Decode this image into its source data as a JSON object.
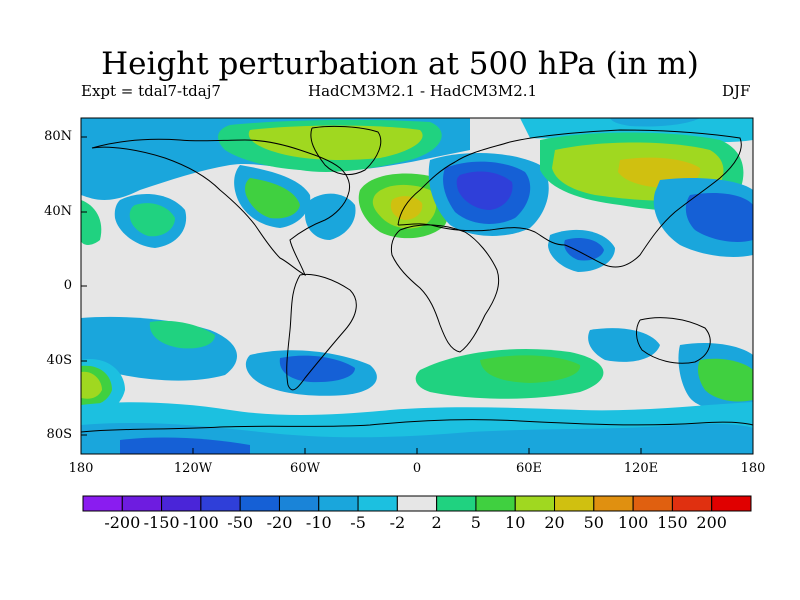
{
  "title": "Height perturbation at 500 hPa (in m)",
  "subtitle_left": "Expt = tdal7-tdaj7",
  "subtitle_center": "HadCM3M2.1 - HadCM3M2.1",
  "subtitle_right": "DJF",
  "map": {
    "projection": "cylindrical equidistant",
    "lon_range": [
      -180,
      180
    ],
    "lat_range": [
      -90,
      90
    ],
    "lat_ticks": [
      "80N",
      "40N",
      "0",
      "40S",
      "80S"
    ],
    "lon_ticks": [
      "180",
      "120W",
      "60W",
      "0",
      "60E",
      "120E",
      "180"
    ],
    "background_color": "#e6e6e6",
    "coastline_color": "#000000"
  },
  "colorbar": {
    "labels": [
      "-200",
      "-150",
      "-100",
      "-50",
      "-20",
      "-10",
      "-5",
      "-2",
      "2",
      "5",
      "10",
      "20",
      "50",
      "100",
      "150",
      "200"
    ],
    "colors": [
      "#8a1cf0",
      "#6e1ce0",
      "#4a25d8",
      "#2f3fd9",
      "#1560d6",
      "#1a84d8",
      "#1aa6dc",
      "#1cc0e0",
      "#e6e6e6",
      "#20d280",
      "#40d040",
      "#a0d820",
      "#d0c010",
      "#e09010",
      "#e06010",
      "#e03010",
      "#e00000"
    ]
  }
}
